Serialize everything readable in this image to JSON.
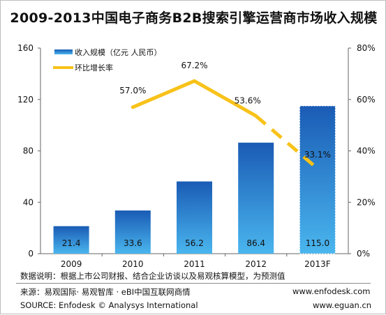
{
  "title": "2009-2013中国电子商务B2B搜索引擎运营商市场收入规模",
  "chart_data": {
    "type": "bar",
    "categories": [
      "2009",
      "2010",
      "2011",
      "2012",
      "2013F"
    ],
    "series": [
      {
        "name": "收入规模（亿元 人民币）",
        "type": "bar",
        "axis": "left",
        "values": [
          21.4,
          33.6,
          56.2,
          86.4,
          115.0
        ],
        "labels": [
          "21.4",
          "33.6",
          "56.2",
          "86.4",
          "115.0"
        ]
      },
      {
        "name": "环比增长率",
        "type": "line",
        "axis": "right",
        "x": [
          "2010",
          "2011",
          "2012",
          "2013F"
        ],
        "values": [
          57.0,
          67.2,
          53.6,
          33.1
        ],
        "labels": [
          "57.0%",
          "67.2%",
          "53.6%",
          "33.1%"
        ],
        "forecast_from": "2012"
      }
    ],
    "y_left": {
      "ylim": [
        0,
        160
      ],
      "ticks": [
        "0",
        "40",
        "80",
        "120",
        "160"
      ]
    },
    "y_right": {
      "ylim": [
        0,
        80
      ],
      "unit": "%",
      "ticks": [
        "0%",
        "20%",
        "40%",
        "60%",
        "80%"
      ]
    },
    "legend": "top-left",
    "grid": false,
    "colors": {
      "bar_top": "#1a5bb5",
      "bar_bottom": "#4ab6ee",
      "line": "#f8c21a",
      "axis": "#666666",
      "text": "#111111"
    }
  },
  "notes": {
    "data_explanation": "数据说明：根据上市公司财报、结合企业访谈以及易观核算模型，为预测值",
    "source_cn": "来源：易观国际· 易观智库 · eBI中国互联网商情",
    "source_en": "SOURCE: Enfodesk © Analysys International",
    "url1": "www.enfodesk.com",
    "url2": "www.eguan.cn"
  }
}
